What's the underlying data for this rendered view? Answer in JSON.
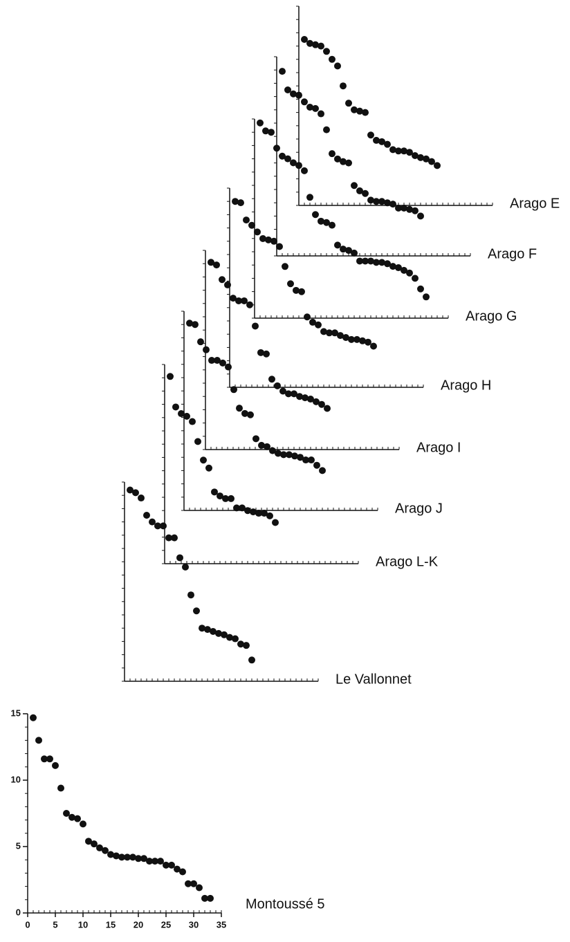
{
  "chart_data": [
    {
      "type": "scatter",
      "title": "Montoussé 5",
      "color": "#111111",
      "xlim": [
        0,
        35
      ],
      "ylim": [
        0,
        15
      ],
      "xticks": [
        0,
        5,
        10,
        15,
        20,
        25,
        30,
        35
      ],
      "yticks": [
        0,
        5,
        10,
        15
      ],
      "x": [
        1,
        2,
        3,
        4,
        5,
        6,
        7,
        8,
        9,
        10,
        11,
        12,
        13,
        14,
        15,
        16,
        17,
        18,
        19,
        20,
        21,
        22,
        23,
        24,
        25,
        26,
        27,
        28,
        29,
        30,
        31,
        32,
        33
      ],
      "values": [
        14.7,
        13,
        11.6,
        11.6,
        11.1,
        9.4,
        7.5,
        7.2,
        7.1,
        6.7,
        5.4,
        5.2,
        4.9,
        4.7,
        4.4,
        4.3,
        4.2,
        4.2,
        4.2,
        4.1,
        4.1,
        3.9,
        3.9,
        3.9,
        3.6,
        3.6,
        3.3,
        3.1,
        2.2,
        2.2,
        1.9,
        1.1,
        1.1
      ]
    },
    {
      "type": "scatter",
      "title": "Le Vallonnet",
      "color": "#111111",
      "xlim": [
        0,
        35
      ],
      "ylim": [
        0,
        15
      ],
      "x": [
        1,
        2,
        3,
        4,
        5,
        6,
        7,
        8,
        9,
        10,
        11,
        12,
        13,
        14,
        15,
        16,
        17,
        18,
        19,
        20,
        21,
        22,
        23
      ],
      "values": [
        14.4,
        14.2,
        13.8,
        12.5,
        12.0,
        11.7,
        11.7,
        10.8,
        10.8,
        9.3,
        8.6,
        6.5,
        5.3,
        4.0,
        3.9,
        3.75,
        3.6,
        3.5,
        3.3,
        3.2,
        2.8,
        2.7,
        1.6
      ]
    },
    {
      "type": "scatter",
      "title": "Arago L-K",
      "color": "#111111",
      "xlim": [
        0,
        35
      ],
      "ylim": [
        0,
        15
      ],
      "x": [
        1,
        2,
        3,
        4,
        5,
        6,
        7,
        8,
        9,
        10,
        11,
        12,
        13,
        14,
        15,
        16,
        17,
        18,
        19,
        20
      ],
      "values": [
        14.1,
        11.8,
        11.3,
        11.1,
        10.7,
        9.2,
        7.8,
        7.2,
        5.4,
        5.1,
        4.9,
        4.9,
        4.2,
        4.2,
        4.0,
        3.9,
        3.8,
        3.8,
        3.6,
        3.1
      ]
    },
    {
      "type": "scatter",
      "title": "Arago J",
      "color": "#111111",
      "xlim": [
        0,
        35
      ],
      "ylim": [
        0,
        15
      ],
      "x": [
        1,
        2,
        3,
        4,
        5,
        6,
        7,
        8,
        9,
        10,
        11,
        12,
        13,
        14,
        15,
        16,
        17,
        18,
        19,
        20,
        21,
        22,
        23,
        24,
        25
      ],
      "values": [
        14.1,
        14.0,
        12.7,
        12.1,
        11.3,
        11.3,
        11.1,
        10.8,
        9.1,
        7.7,
        7.3,
        7.2,
        5.4,
        4.9,
        4.8,
        4.5,
        4.3,
        4.2,
        4.2,
        4.1,
        4.0,
        3.8,
        3.8,
        3.4,
        3.0
      ]
    },
    {
      "type": "scatter",
      "title": "Arago I",
      "color": "#111111",
      "xlim": [
        0,
        35
      ],
      "ylim": [
        0,
        15
      ],
      "x": [
        1,
        2,
        3,
        4,
        5,
        6,
        7,
        8,
        9,
        10,
        11,
        12,
        13,
        14,
        15,
        16,
        17,
        18,
        19,
        20,
        21,
        22
      ],
      "values": [
        14.1,
        13.9,
        12.8,
        12.4,
        11.4,
        11.2,
        11.2,
        10.9,
        9.3,
        7.3,
        7.2,
        5.3,
        4.8,
        4.4,
        4.2,
        4.2,
        4.0,
        3.9,
        3.8,
        3.6,
        3.4,
        3.1
      ]
    },
    {
      "type": "scatter",
      "title": "Arago H",
      "color": "#111111",
      "xlim": [
        0,
        35
      ],
      "ylim": [
        0,
        15
      ],
      "x": [
        1,
        2,
        3,
        4,
        5,
        6,
        7,
        8,
        9,
        10,
        11,
        12,
        13,
        14,
        15,
        16,
        17,
        18,
        19,
        20,
        21,
        22,
        23,
        24,
        25,
        26
      ],
      "values": [
        14.0,
        13.9,
        12.6,
        12.2,
        11.7,
        11.2,
        11.1,
        11.0,
        10.6,
        9.1,
        7.8,
        7.3,
        7.2,
        5.3,
        4.9,
        4.7,
        4.2,
        4.1,
        4.1,
        3.9,
        3.75,
        3.6,
        3.6,
        3.5,
        3.4,
        3.1
      ]
    },
    {
      "type": "scatter",
      "title": "Arago G",
      "color": "#111111",
      "xlim": [
        0,
        35
      ],
      "ylim": [
        0,
        15
      ],
      "x": [
        1,
        2,
        3,
        4,
        5,
        6,
        7,
        8,
        9,
        10,
        11,
        12,
        13,
        14,
        15,
        16,
        17,
        18,
        19,
        20,
        21,
        22,
        23,
        24,
        25,
        26,
        27,
        28,
        29,
        30,
        31
      ],
      "values": [
        14.7,
        14.1,
        14.0,
        12.8,
        12.2,
        12.0,
        11.7,
        11.5,
        11.1,
        9.1,
        7.8,
        7.3,
        7.2,
        7.0,
        5.5,
        5.2,
        5.1,
        4.9,
        4.3,
        4.3,
        4.3,
        4.2,
        4.2,
        4.1,
        3.9,
        3.8,
        3.6,
        3.4,
        3.0,
        2.2,
        1.6
      ]
    },
    {
      "type": "scatter",
      "title": "Arago F",
      "color": "#111111",
      "xlim": [
        0,
        35
      ],
      "ylim": [
        0,
        15
      ],
      "x": [
        1,
        2,
        3,
        4,
        5,
        6,
        7,
        8,
        9,
        10,
        11,
        12,
        13,
        14,
        15,
        16,
        17,
        18,
        19,
        20,
        21,
        22,
        23,
        24,
        25,
        26
      ],
      "values": [
        13.9,
        12.5,
        12.2,
        12.1,
        11.6,
        11.2,
        11.1,
        10.7,
        9.5,
        7.7,
        7.3,
        7.1,
        7.0,
        5.3,
        4.9,
        4.7,
        4.2,
        4.1,
        4.1,
        4.0,
        3.9,
        3.6,
        3.6,
        3.5,
        3.4,
        3.0
      ]
    },
    {
      "type": "scatter",
      "title": "Arago E",
      "color": "#111111",
      "xlim": [
        0,
        35
      ],
      "ylim": [
        0,
        15
      ],
      "x": [
        1,
        2,
        3,
        4,
        5,
        6,
        7,
        8,
        9,
        10,
        11,
        12,
        13,
        14,
        15,
        16,
        17,
        18,
        19,
        20,
        21,
        22,
        23,
        24,
        25
      ],
      "values": [
        12.5,
        12.2,
        12.1,
        12.0,
        11.6,
        11.0,
        10.5,
        9.0,
        7.7,
        7.2,
        7.1,
        7.0,
        5.3,
        4.9,
        4.8,
        4.6,
        4.2,
        4.1,
        4.1,
        4.0,
        3.75,
        3.6,
        3.5,
        3.3,
        3.0
      ]
    }
  ]
}
